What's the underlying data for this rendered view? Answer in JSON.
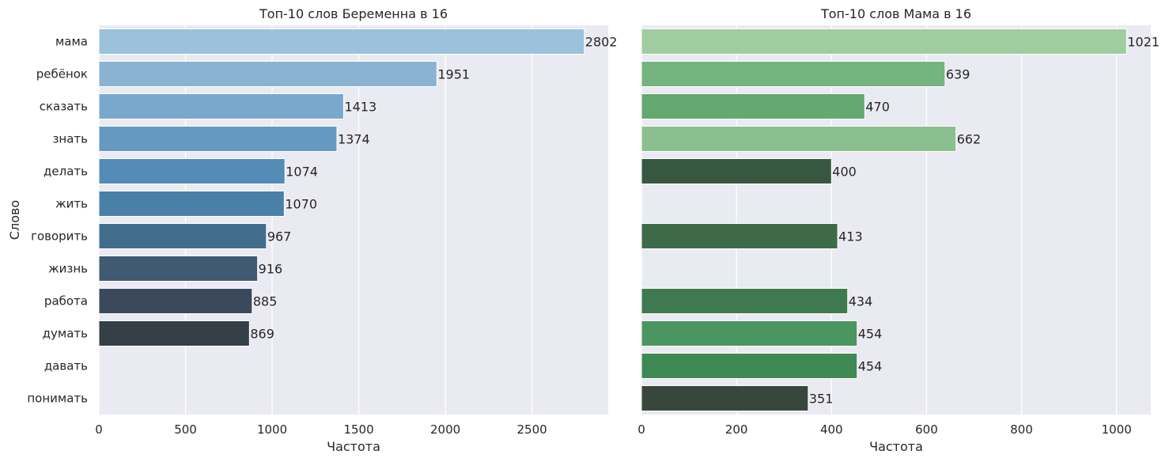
{
  "charts": [
    {
      "type": "bar",
      "orientation": "horizontal",
      "title": "Топ-10 слов Беременна в 16",
      "xlabel": "Частота",
      "ylabel": "Слово",
      "categories": [
        "мама",
        "ребёнок",
        "сказать",
        "знать",
        "делать",
        "жить",
        "говорить",
        "жизнь",
        "работа",
        "думать",
        "давать",
        "понимать"
      ],
      "values": [
        2802,
        1951,
        1413,
        1374,
        1074,
        1070,
        967,
        916,
        885,
        869,
        null,
        null
      ],
      "colors": [
        "#9cc2db",
        "#8ab3d1",
        "#7aa8cc",
        "#6699c2",
        "#548bb7",
        "#4a7fa8",
        "#426c8c",
        "#3f5a72",
        "#3a4a5c",
        "#343f47",
        null,
        null
      ],
      "xlim": [
        0,
        2940
      ],
      "xticks": [
        0,
        500,
        1000,
        1500,
        2000,
        2500
      ],
      "grid": true
    },
    {
      "type": "bar",
      "orientation": "horizontal",
      "title": "Топ-10 слов Мама в 16",
      "xlabel": "Частота",
      "ylabel": "",
      "categories": [
        "мама",
        "ребёнок",
        "сказать",
        "знать",
        "делать",
        "жить",
        "говорить",
        "жизнь",
        "работа",
        "думать",
        "давать",
        "понимать"
      ],
      "values": [
        1021,
        639,
        470,
        662,
        400,
        null,
        413,
        null,
        434,
        454,
        454,
        351
      ],
      "colors": [
        "#a0cd9f",
        "#75b37f",
        "#62a86f",
        "#8cbf8f",
        "#385740",
        null,
        "#3d6b4a",
        null,
        "#3f7a4e",
        "#4b9660",
        "#3f8a54",
        "#37473b"
      ],
      "xlim": [
        0,
        1072
      ],
      "xticks": [
        0,
        200,
        400,
        600,
        800,
        1000
      ],
      "grid": true
    }
  ]
}
